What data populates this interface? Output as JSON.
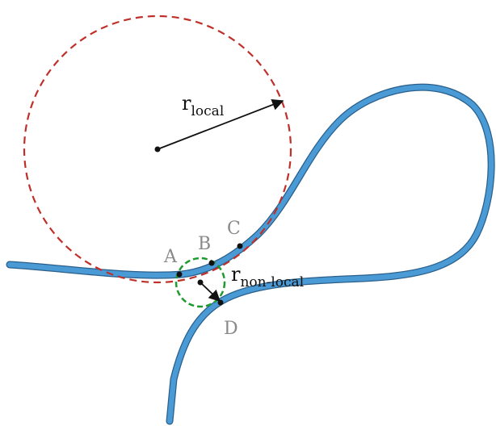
{
  "radii": [
    {
      "symbol": "r",
      "subscript": "local"
    },
    {
      "symbol": "r",
      "subscript": "non-local"
    }
  ],
  "points": [
    "A",
    "B",
    "C",
    "D"
  ]
}
